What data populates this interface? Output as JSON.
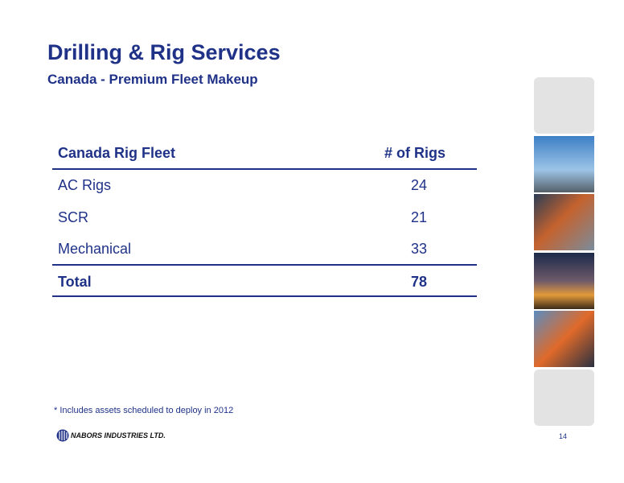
{
  "header": {
    "title": "Drilling & Rig Services",
    "subtitle": "Canada - Premium Fleet Makeup"
  },
  "table": {
    "columns": [
      "Canada Rig Fleet",
      "# of Rigs"
    ],
    "rows": [
      [
        "AC Rigs",
        24
      ],
      [
        "SCR",
        21
      ],
      [
        "Mechanical",
        33
      ]
    ],
    "total": [
      "Total",
      78
    ]
  },
  "footnote": "* Includes assets scheduled to deploy in 2012",
  "footer": {
    "company": "NABORS INDUSTRIES LTD.",
    "page": "14"
  }
}
